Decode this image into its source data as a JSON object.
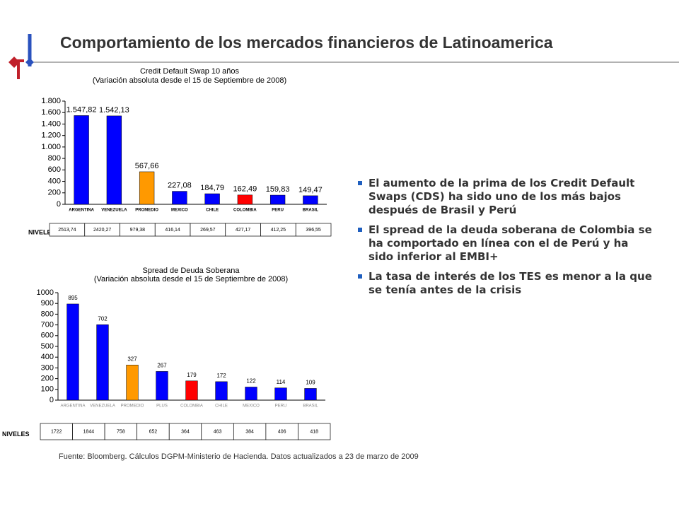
{
  "title": "Comportamiento de los mercados financieros de Latinoamerica",
  "chart_data": [
    {
      "type": "bar",
      "title": "Credit Default Swap 10 años",
      "subtitle": "(Variación absoluta desde el 15 de Septiembre de 2008)",
      "categories": [
        "ARGENTINA",
        "VENEZUELA",
        "PROMEDIO",
        "MEXICO",
        "CHILE",
        "COLOMBIA",
        "PERU",
        "BRASIL"
      ],
      "values": [
        1547.82,
        1542.13,
        567.66,
        227.08,
        184.79,
        162.49,
        159.83,
        149.47
      ],
      "value_labels": [
        "1.547,82",
        "1.542,13",
        "567,66",
        "227,08",
        "184,79",
        "162,49",
        "159,83",
        "149,47"
      ],
      "colors": [
        "#0000ff",
        "#0000ff",
        "#ff9900",
        "#0000ff",
        "#0000ff",
        "#ff0000",
        "#0000ff",
        "#0000ff"
      ],
      "ylim": [
        0,
        1800
      ],
      "yticks": [
        0,
        200,
        400,
        600,
        800,
        {
          "value": 1000,
          "label": "1.000"
        },
        {
          "value": 1200,
          "label": "1.200"
        },
        {
          "value": 1400,
          "label": "1.400"
        },
        {
          "value": 1600,
          "label": "1.600"
        },
        {
          "value": 1800,
          "label": "1.800"
        }
      ],
      "table": {
        "label": "NIVELES",
        "cells": [
          "2513,74",
          "2420,27",
          "979,38",
          "416,14",
          "269,57",
          "427,17",
          "412,25",
          "396,55"
        ]
      }
    },
    {
      "type": "bar",
      "title": "Spread de Deuda Soberana",
      "subtitle": "(Variación absoluta desde el 15 de Septiembre de 2008)",
      "categories": [
        "ARGENTINA",
        "VENEZUELA",
        "PROMEDIO",
        "PLUS",
        "COLOMBIA",
        "CHILE",
        "MEXICO",
        "PERU",
        "BRASIL"
      ],
      "values": [
        895,
        702,
        327,
        267,
        179,
        172,
        122,
        114,
        109
      ],
      "colors": [
        "#0000ff",
        "#0000ff",
        "#ff9900",
        "#0000ff",
        "#ff0000",
        "#0000ff",
        "#0000ff",
        "#0000ff",
        "#0000ff"
      ],
      "ylim": [
        0,
        1000
      ],
      "yticks": [
        0,
        100,
        200,
        300,
        400,
        500,
        600,
        700,
        800,
        900,
        1000
      ],
      "table": {
        "label": "NIVELES",
        "cells": [
          "1722",
          "1844",
          "758",
          "652",
          "364",
          "463",
          "384",
          "406",
          "418"
        ]
      }
    }
  ],
  "bullets": [
    "El aumento de la prima de los Credit Default Swaps (CDS) ha sido uno de los más bajos después de Brasil y Perú",
    "El spread de la deuda soberana de Colombia se ha comportado en línea con el de Perú y ha sido inferior al EMBI+",
    "La tasa de interés de los TES es menor a la que se tenía antes de la crisis"
  ],
  "source": "Fuente: Bloomberg. Cálculos DGPM-Ministerio de Hacienda. Datos actualizados a 23 de marzo de 2009"
}
